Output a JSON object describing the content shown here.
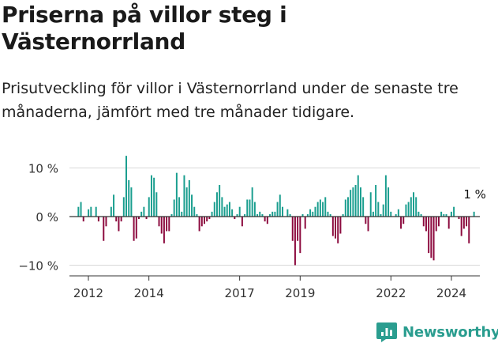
{
  "title": "Priserna på villor steg i Västernorrland",
  "subtitle": "Prisutveckling för villor i Västernorrland under de senaste tre månaderna, jämfört med tre månader tidigare.",
  "brand": {
    "name": "Newsworthy"
  },
  "colors": {
    "positive": "#1a9e8f",
    "negative": "#8c0a3e",
    "grid": "#d9d9d9",
    "axis": "#333333",
    "text": "#333333",
    "brand": "#2a9d8f"
  },
  "chart_data": {
    "type": "bar",
    "title": "Priserna på villor steg i Västernorrland",
    "subtitle": "Prisutveckling för villor i Västernorrland under de senaste tre månaderna, jämfört med tre månader tidigare.",
    "xlabel": "",
    "ylabel": "",
    "ylim": [
      -12,
      12
    ],
    "yticks": [
      10,
      0,
      -10
    ],
    "ytick_labels": [
      "10 %",
      "0 %",
      "−10 %"
    ],
    "xticks": [
      2012,
      2014,
      2017,
      2019,
      2022,
      2024
    ],
    "grid": true,
    "legend": "none",
    "annotation": {
      "text": "1 %",
      "value": 1
    },
    "x_start": 2011.67,
    "x_step": 0.0833,
    "values": [
      2,
      3,
      -1,
      0,
      1.5,
      2,
      0,
      2,
      -1,
      0,
      -5,
      -2,
      0,
      2,
      4.5,
      -1,
      -3,
      -1,
      4,
      12.5,
      7.5,
      6,
      -5,
      -4.5,
      -0.5,
      1,
      2,
      -0.5,
      4,
      8.5,
      8,
      5,
      -2,
      -3.5,
      -5.5,
      -3,
      -3,
      0.5,
      3.5,
      9,
      4,
      1,
      8.5,
      6,
      7.5,
      4.5,
      2,
      0.5,
      -3,
      -2,
      -1.5,
      -1,
      -0.5,
      1,
      3,
      5,
      6.5,
      4,
      2,
      2.5,
      3,
      1.5,
      -0.5,
      0.5,
      2,
      -2,
      0.5,
      3.5,
      3.5,
      6,
      3,
      0.5,
      1,
      0.5,
      -1,
      -1.5,
      0.5,
      1,
      1,
      3,
      4.5,
      2,
      0,
      1.5,
      0.5,
      -5,
      -10,
      -5,
      -7.5,
      0.5,
      -2.5,
      0.5,
      1.5,
      1,
      2,
      3,
      3.5,
      3,
      4,
      1,
      0.5,
      -4,
      -4.5,
      -5.5,
      -3.5,
      0.5,
      3.5,
      4,
      5.5,
      6,
      6.5,
      8.5,
      6,
      4,
      -1.5,
      -3,
      5,
      1,
      6.5,
      3,
      0.5,
      2.5,
      8.5,
      6,
      1,
      0,
      0.5,
      1.5,
      -2.5,
      -1.5,
      2.5,
      3,
      4,
      5,
      4,
      1,
      0.5,
      -2,
      -3,
      -7.5,
      -8.5,
      -9,
      -3,
      -2,
      1,
      0.5,
      0.5,
      -2.5,
      1,
      2,
      0,
      -0.5,
      -4,
      -2.5,
      -2,
      -5.5,
      0,
      1
    ]
  }
}
